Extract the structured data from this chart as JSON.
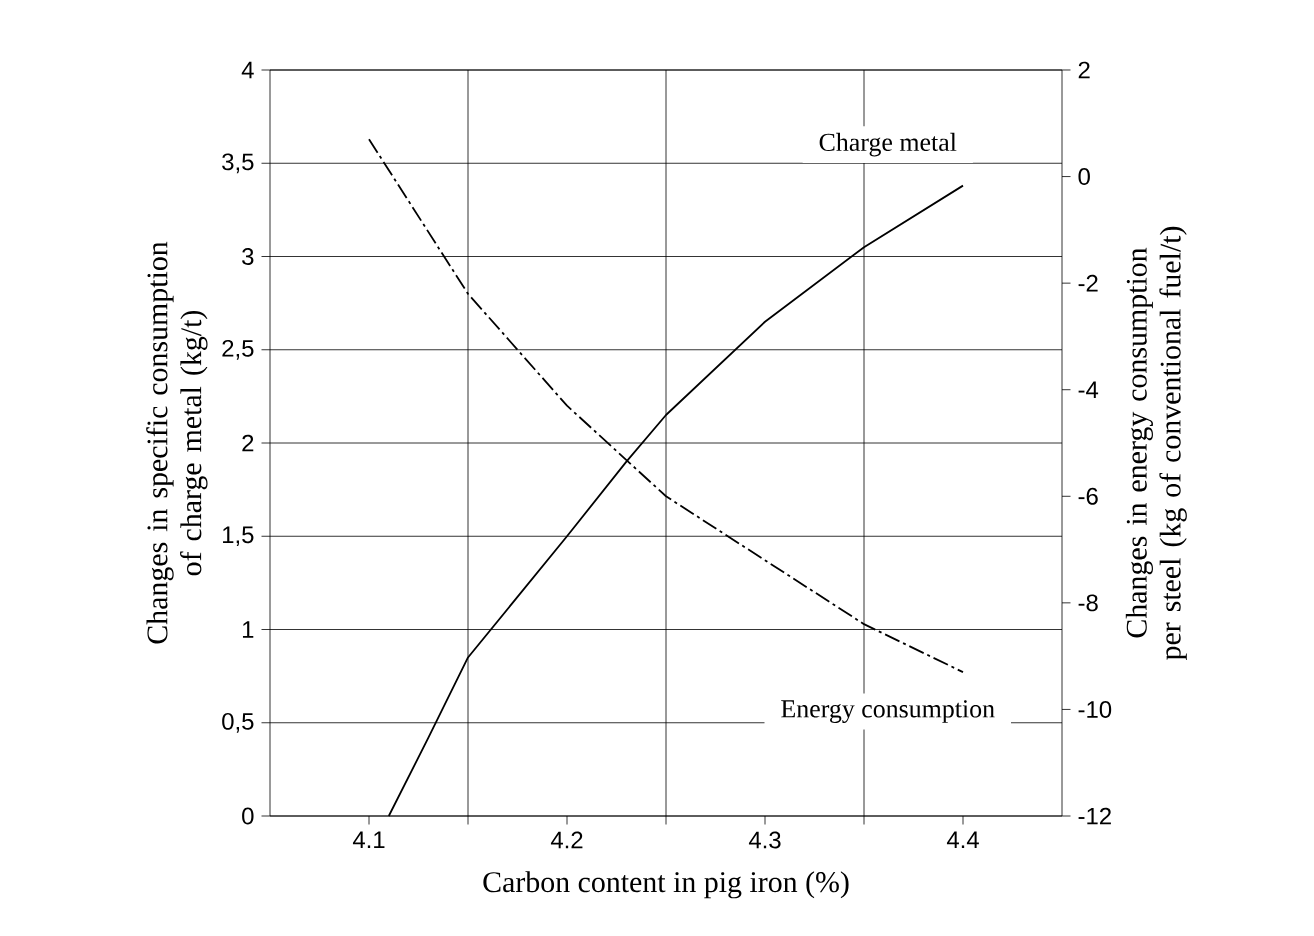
{
  "chart_data": {
    "type": "line",
    "xlabel": "Carbon content in pig iron (%)",
    "ylabel": "Changes in specific consumption of charge metal (kg/t)",
    "y2label": "Changes in energy consumption per steel (kg of  conventional fuel/t)",
    "xlim": [
      4.05,
      4.45
    ],
    "xticks": [
      4.1,
      {
        "value": 4.15,
        "label": null
      },
      4.2,
      {
        "value": 4.25,
        "label": null
      },
      4.3,
      {
        "value": 4.35,
        "label": null
      },
      4.4
    ],
    "ylim": [
      0,
      4
    ],
    "yticks": [
      0,
      {
        "value": 0.5,
        "label": "0,5"
      },
      1,
      {
        "value": 1.5,
        "label": "1,5"
      },
      2,
      {
        "value": 2.5,
        "label": "2,5"
      },
      3,
      {
        "value": 3.5,
        "label": "3,5"
      },
      4
    ],
    "y2lim": [
      -12,
      2
    ],
    "y2ticks": [
      -12,
      -10,
      -8,
      -6,
      -4,
      -2,
      0,
      2
    ],
    "grid": true,
    "legend": false,
    "marker": "none",
    "series": [
      {
        "name": "Charge metal",
        "color": "#000000",
        "line_style": "solid",
        "x": [
          4.11,
          4.13,
          4.15,
          4.2,
          4.23,
          4.25,
          4.3,
          4.35,
          4.4
        ],
        "values": [
          0,
          0.42,
          0.85,
          1.5,
          1.9,
          2.15,
          2.65,
          3.05,
          3.38
        ]
      },
      {
        "name": "Energy consumption",
        "color": "#000000",
        "line_style": "dashed",
        "axis": "y2",
        "x": [
          4.1,
          4.15,
          4.2,
          4.25,
          4.3,
          4.35,
          4.4
        ],
        "values": [
          0.7,
          -2.2,
          -4.3,
          -6.0,
          -7.2,
          -8.4,
          -9.3
        ]
      }
    ]
  }
}
